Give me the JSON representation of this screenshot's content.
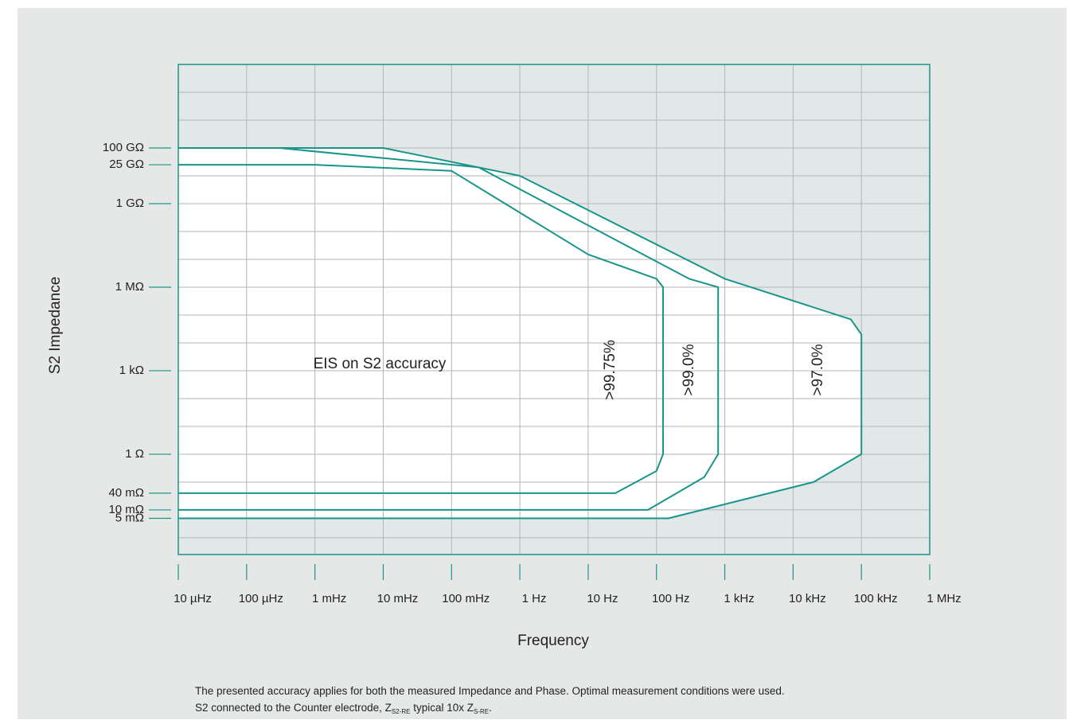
{
  "chart_data": {
    "type": "area",
    "xlabel": "Frequency",
    "ylabel": "S2 Impedance",
    "x_scale": "log",
    "x_ticks": [
      "10 µHz",
      "100 µHz",
      "1 mHz",
      "10 mHz",
      "100 mHz",
      "1 Hz",
      "10 Hz",
      "100 Hz",
      "1 kHz",
      "10 kHz",
      "100 kHz",
      "1 MHz"
    ],
    "x_tick_values_hz": [
      1e-05,
      0.0001,
      0.001,
      0.01,
      0.1,
      1,
      10,
      100,
      1000,
      10000,
      100000,
      1000000
    ],
    "xlim_hz": [
      1e-05,
      1000000
    ],
    "y_scale": "log",
    "y_ticks": [
      "100 GΩ",
      "25 GΩ",
      "1 GΩ",
      "1 MΩ",
      "1 kΩ",
      "1 Ω",
      "40 mΩ",
      "10 mΩ",
      "5 mΩ"
    ],
    "y_tick_values_ohm": [
      100000000000,
      25000000000,
      1000000000,
      1000000,
      1000,
      1,
      0.04,
      0.01,
      0.005
    ],
    "ylim_ohm": [
      0.00025,
      100000000000000
    ],
    "grid": true,
    "annotation": "EIS on S2 accuracy",
    "series": [
      {
        "name": ">99.75%",
        "boundary": [
          {
            "x": 1e-05,
            "y": 25000000000
          },
          {
            "x": 0.001,
            "y": 25000000000
          },
          {
            "x": 0.1,
            "y": 15000000000
          },
          {
            "x": 10,
            "y": 15000000
          },
          {
            "x": 100,
            "y": 2000000
          },
          {
            "x": 125,
            "y": 1000000
          },
          {
            "x": 125,
            "y": 1
          },
          {
            "x": 100,
            "y": 0.25
          },
          {
            "x": 25,
            "y": 0.04
          },
          {
            "x": 1e-05,
            "y": 0.04
          }
        ]
      },
      {
        "name": ">99.0%",
        "boundary": [
          {
            "x": 1e-05,
            "y": 100000000000
          },
          {
            "x": 0.0003,
            "y": 100000000000
          },
          {
            "x": 0.25,
            "y": 20000000000
          },
          {
            "x": 300,
            "y": 2000000
          },
          {
            "x": 800,
            "y": 1000000
          },
          {
            "x": 800,
            "y": 1
          },
          {
            "x": 500,
            "y": 0.15
          },
          {
            "x": 75,
            "y": 0.01
          },
          {
            "x": 1e-05,
            "y": 0.01
          }
        ]
      },
      {
        "name": ">97.0%",
        "boundary": [
          {
            "x": 1e-05,
            "y": 100000000000
          },
          {
            "x": 0.01,
            "y": 100000000000
          },
          {
            "x": 1,
            "y": 10000000000
          },
          {
            "x": 1000,
            "y": 2000000
          },
          {
            "x": 70000,
            "y": 70000
          },
          {
            "x": 100000,
            "y": 20000
          },
          {
            "x": 100000,
            "y": 1
          },
          {
            "x": 20000,
            "y": 0.1
          },
          {
            "x": 150,
            "y": 0.005
          },
          {
            "x": 1e-05,
            "y": 0.005
          }
        ]
      }
    ]
  },
  "footnote": {
    "line1": "The presented accuracy applies for both the measured Impedance and Phase. Optimal measurement conditions were used.",
    "line2_pre": "S2 connected to the Counter electrode, Z",
    "sub1": "S2-RE",
    "line2_mid": " typical 10x Z",
    "sub2": "S-RE",
    "line2_post": "."
  },
  "colors": {
    "panel": "#e6e8e8",
    "plot_bg": "#e2e8e8",
    "grid": "#b3b6b6",
    "curve": "#18958a",
    "inner_fill": "#ffffff"
  }
}
